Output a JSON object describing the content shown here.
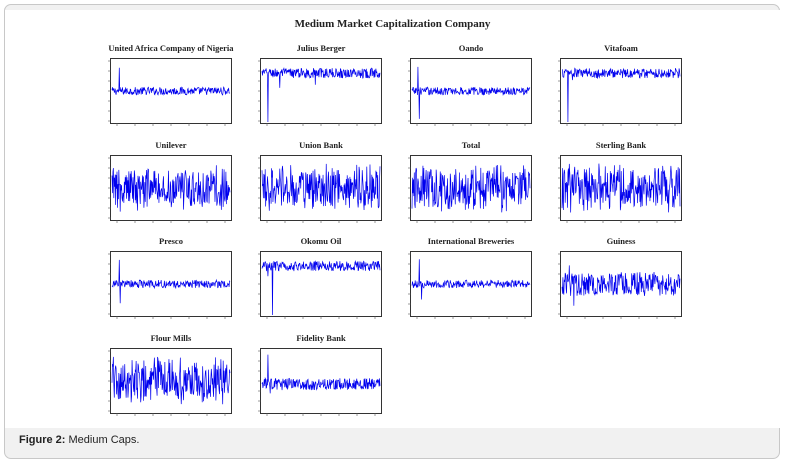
{
  "figure_title": "Medium Market Capitalization Company",
  "caption": {
    "label": "Figure 2:",
    "text": "Medium Caps."
  },
  "series_color": "#0000ee",
  "chart_data": [
    {
      "type": "line",
      "title": "United Africa Company of Nigeria",
      "style": "quiet",
      "spikes": [
        [
          0.06,
          -1.0
        ],
        [
          0.06,
          0.75
        ],
        [
          0.21,
          -0.12
        ]
      ]
    },
    {
      "type": "line",
      "title": "Julius Berger",
      "style": "upper",
      "spikes": [
        [
          0.05,
          -1.0
        ],
        [
          0.15,
          0.1
        ],
        [
          0.45,
          0.2
        ]
      ]
    },
    {
      "type": "line",
      "title": "Oando",
      "style": "quiet",
      "spikes": [
        [
          0.05,
          0.78
        ],
        [
          0.06,
          -0.9
        ],
        [
          0.3,
          -0.12
        ]
      ]
    },
    {
      "type": "line",
      "title": "Vitafoam",
      "style": "upper",
      "spikes": [
        [
          0.05,
          -1.0
        ],
        [
          0.3,
          0.4
        ],
        [
          0.09,
          0.35
        ]
      ]
    },
    {
      "type": "line",
      "title": "Unilever",
      "style": "dense",
      "spikes": []
    },
    {
      "type": "line",
      "title": "Union Bank",
      "style": "dense",
      "spikes": []
    },
    {
      "type": "line",
      "title": "Total",
      "style": "dense",
      "spikes": []
    },
    {
      "type": "line",
      "title": "Sterling Bank",
      "style": "dense",
      "spikes": []
    },
    {
      "type": "line",
      "title": "Presco",
      "style": "quiet",
      "spikes": [
        [
          0.06,
          0.78
        ],
        [
          0.07,
          -0.62
        ]
      ]
    },
    {
      "type": "line",
      "title": "Okomu Oil",
      "style": "upper",
      "spikes": [
        [
          0.09,
          -1.0
        ],
        [
          0.05,
          0.25
        ]
      ]
    },
    {
      "type": "line",
      "title": "International Breweries",
      "style": "quiet",
      "spikes": [
        [
          0.06,
          0.8
        ],
        [
          0.08,
          -0.5
        ]
      ]
    },
    {
      "type": "line",
      "title": "Guiness",
      "style": "medium",
      "spikes": [
        [
          0.06,
          0.6
        ],
        [
          0.1,
          -0.7
        ]
      ]
    },
    {
      "type": "line",
      "title": "Flour Mills",
      "style": "dense",
      "spikes": []
    },
    {
      "type": "line",
      "title": "Fidelity Bank",
      "style": "lower",
      "spikes": [
        [
          0.05,
          0.85
        ],
        [
          0.07,
          -0.4
        ]
      ]
    }
  ]
}
